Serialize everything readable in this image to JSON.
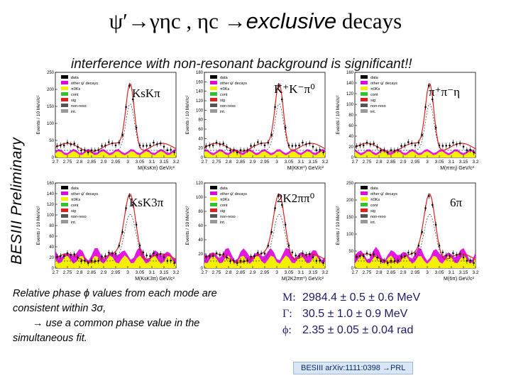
{
  "title": {
    "main": "ψ′→γηc , ηc →",
    "italic": "exclusive",
    "rest": " decays"
  },
  "subtitle": "interference with non-resonant background is significant!!",
  "watermark": "BESIII Preliminary",
  "legend_entries": [
    "data",
    "other ψ' decays",
    "π0Ks",
    "cont",
    "sig",
    "non-reso",
    "int."
  ],
  "plots": [
    {
      "mode": "KsKπ",
      "xlabel": "M(KsKπ) GeV/c²",
      "ylabel": "Events / 10 MeV/c²",
      "yticks": [
        "250",
        "200",
        "150",
        "100",
        "50",
        "0"
      ],
      "xticks": [
        "2.7",
        "2.75",
        "2.8",
        "2.85",
        "2.9",
        "2.95",
        "3",
        "3.05",
        "3.1",
        "3.15",
        "3.2"
      ]
    },
    {
      "mode": "K⁺K⁻π⁰",
      "xlabel": "M(KKπ⁰) GeV/c²",
      "ylabel": "Events / 10 MeV/c²",
      "yticks": [
        "180",
        "160",
        "140",
        "120",
        "100",
        "80",
        "60",
        "40",
        "20",
        "0"
      ],
      "xticks": [
        "2.7",
        "2.75",
        "2.8",
        "2.85",
        "2.9",
        "2.95",
        "3",
        "3.05",
        "3.1",
        "3.15",
        "3.2"
      ]
    },
    {
      "mode": "π⁺π⁻η",
      "xlabel": "M(ππη) GeV/c²",
      "ylabel": "Events / 10 MeV/c²",
      "yticks": [
        "160",
        "140",
        "120",
        "100",
        "80",
        "60",
        "40",
        "20",
        "0"
      ],
      "xticks": [
        "2.7",
        "2.75",
        "2.8",
        "2.85",
        "2.9",
        "2.95",
        "3",
        "3.05",
        "3.1",
        "3.15",
        "3.2"
      ]
    },
    {
      "mode": "KsK3π",
      "xlabel": "M(KsK3π) GeV/c²",
      "ylabel": "Events / 10 MeV/c²",
      "yticks": [
        "160",
        "140",
        "120",
        "100",
        "80",
        "60",
        "40",
        "20",
        "0"
      ],
      "xticks": [
        "2.7",
        "2.75",
        "2.8",
        "2.85",
        "2.9",
        "2.95",
        "3",
        "3.05",
        "3.1",
        "3.15",
        "3.2"
      ]
    },
    {
      "mode": "2K2ππ⁰",
      "xlabel": "M(2K2ππ⁰) GeV/c²",
      "ylabel": "Events / 10 MeV/c²",
      "yticks": [
        "120",
        "100",
        "80",
        "60",
        "40",
        "20",
        "0"
      ],
      "xticks": [
        "2.7",
        "2.75",
        "2.8",
        "2.85",
        "2.9",
        "2.95",
        "3",
        "3.05",
        "3.1",
        "3.15",
        "3.2"
      ]
    },
    {
      "mode": "6π",
      "xlabel": "M(6π) GeV/c²",
      "ylabel": "Events / 10 MeV/c²",
      "yticks": [
        "250",
        "200",
        "150",
        "100",
        "50",
        "0"
      ],
      "xticks": [
        "2.7",
        "2.75",
        "2.8",
        "2.85",
        "2.9",
        "2.95",
        "3",
        "3.05",
        "3.1",
        "3.15",
        "3.2"
      ]
    }
  ],
  "note": {
    "line1": "Relative phase ϕ values from each mode are",
    "line2": "consistent within 3σ,",
    "line3": "→ use a common phase value in the",
    "line4": "simultaneous fit."
  },
  "results": {
    "mass": {
      "sym": "M:",
      "value": "2984.4 ± 0.5 ± 0.6 MeV"
    },
    "width": {
      "sym": "Γ:",
      "value": "30.5 ± 1.0 ± 0.9 MeV"
    },
    "phase": {
      "sym": "ϕ:",
      "value": "2.35 ± 0.05 ± 0.04 rad"
    }
  },
  "reference": "BESIII arXiv:1111:0398 →PRL",
  "colors": {
    "accent": "#1b1b6a",
    "signal": "#e0201e",
    "other": "#e000e0",
    "cont": "#f4f000",
    "green": "#2fc32f"
  }
}
